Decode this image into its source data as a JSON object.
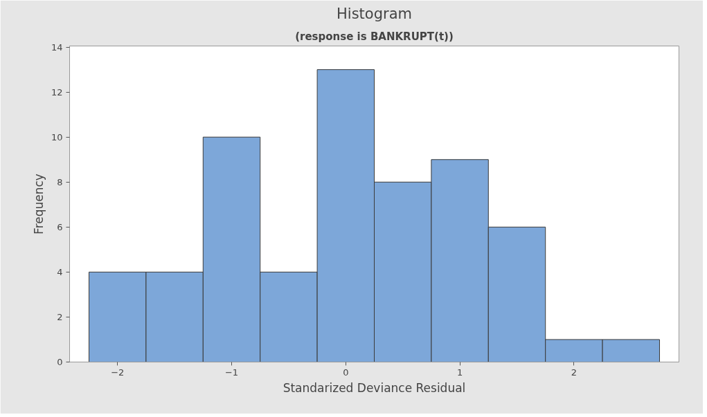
{
  "chart_data": {
    "type": "histogram",
    "title": "Histogram",
    "subtitle": "(response is BANKRUPT(t))",
    "xlabel": "Standarized Deviance Residual",
    "ylabel": "Frequency",
    "bins": [
      -2.25,
      -1.75,
      -1.25,
      -0.75,
      -0.25,
      0.25,
      0.75,
      1.25,
      1.75,
      2.25,
      2.75
    ],
    "values": [
      4,
      4,
      10,
      4,
      13,
      8,
      9,
      6,
      1,
      1
    ],
    "color": "#7da7d9",
    "xlim": [
      -2.42,
      2.92
    ],
    "xticks": [
      -2,
      -1,
      0,
      1,
      2
    ],
    "ylim": [
      0,
      14.05
    ],
    "yticks": [
      0,
      2,
      4,
      6,
      8,
      10,
      12,
      14
    ],
    "grid": false
  }
}
